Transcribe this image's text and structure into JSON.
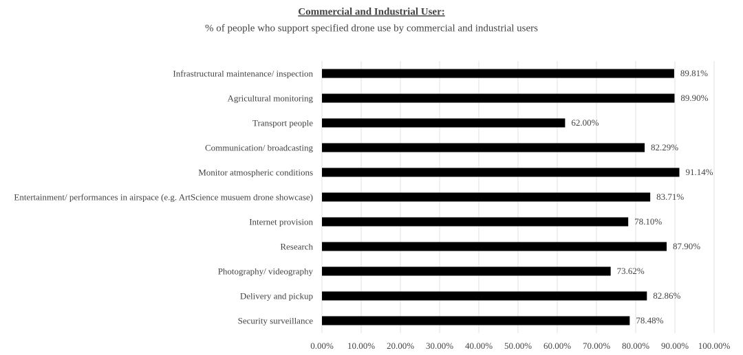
{
  "chart_data": {
    "type": "barh",
    "title": "Commercial and Industrial User:",
    "subtitle": "% of people who support specified drone use by commercial and industrial users",
    "categories": [
      "Infrastructural maintenance/ inspection",
      "Agricultural monitoring",
      "Transport people",
      "Communication/ broadcasting",
      "Monitor atmospheric conditions",
      "Entertainment/ performances in airspace (e.g. ArtScience musuem drone showcase)",
      "Internet provision",
      "Research",
      "Photography/ videography",
      "Delivery and pickup",
      "Security surveillance"
    ],
    "values": [
      89.81,
      89.9,
      62.0,
      82.29,
      91.14,
      83.71,
      78.1,
      87.9,
      73.62,
      82.86,
      78.48
    ],
    "value_labels": [
      "89.81%",
      "89.90%",
      "62.00%",
      "82.29%",
      "91.14%",
      "83.71%",
      "78.10%",
      "87.90%",
      "73.62%",
      "82.86%",
      "78.48%"
    ],
    "color": "#000000",
    "xlim": [
      0,
      100
    ],
    "xticks": [
      {
        "value": 0,
        "label": "0.00%"
      },
      {
        "value": 10,
        "label": "10.00%"
      },
      {
        "value": 20,
        "label": "20.00%"
      },
      {
        "value": 30,
        "label": "30.00%"
      },
      {
        "value": 40,
        "label": "40.00%"
      },
      {
        "value": 50,
        "label": "50.00%"
      },
      {
        "value": 60,
        "label": "60.00%"
      },
      {
        "value": 70,
        "label": "70.00%"
      },
      {
        "value": 80,
        "label": "80.00%"
      },
      {
        "value": 90,
        "label": "90.00%"
      },
      {
        "value": 100,
        "label": "100.00%"
      }
    ],
    "grid": true
  }
}
